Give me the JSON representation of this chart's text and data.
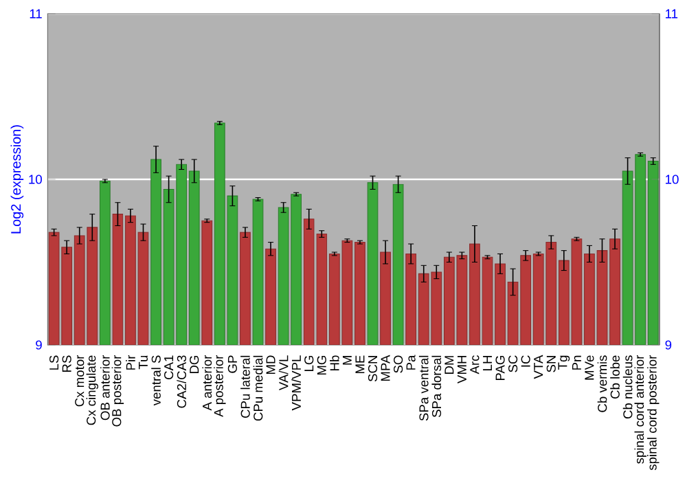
{
  "chart_data": {
    "type": "bar",
    "ylabel": "Log2 (expression)",
    "categories": [
      "LS",
      "RS",
      "Cx motor",
      "Cx cingulate",
      "OB anterior",
      "OB posterior",
      "Pir",
      "Tu",
      "ventral S",
      "CA1",
      "CA2/CA3",
      "DG",
      "A anterior",
      "A posterior",
      "GP",
      "CPu lateral",
      "CPu medial",
      "MD",
      "VA/VL",
      "VPM/VPL",
      "LG",
      "MG",
      "Hb",
      "M",
      "ME",
      "SCN",
      "MPA",
      "SO",
      "Pa",
      "SPa ventral",
      "SPa dorsal",
      "DM",
      "VMH",
      "Arc",
      "LH",
      "PAG",
      "SC",
      "IC",
      "VTA",
      "SN",
      "Tg",
      "Pn",
      "MVe",
      "Cb vermis",
      "Cb lobe",
      "Cb nucleus",
      "spinal cord anterior",
      "spinal cord posterior"
    ],
    "values": [
      9.68,
      9.59,
      9.66,
      9.71,
      9.99,
      9.79,
      9.78,
      9.68,
      10.12,
      9.94,
      10.09,
      10.05,
      9.75,
      10.34,
      9.9,
      9.68,
      9.88,
      9.58,
      9.83,
      9.91,
      9.76,
      9.67,
      9.55,
      9.63,
      9.62,
      9.98,
      9.56,
      9.97,
      9.55,
      9.43,
      9.44,
      9.53,
      9.54,
      9.61,
      9.53,
      9.49,
      9.38,
      9.54,
      9.55,
      9.62,
      9.51,
      9.64,
      9.55,
      9.57,
      9.64,
      10.05,
      10.15,
      10.11
    ],
    "errors": [
      0.02,
      0.04,
      0.05,
      0.08,
      0.01,
      0.07,
      0.04,
      0.05,
      0.08,
      0.08,
      0.03,
      0.07,
      0.01,
      0.01,
      0.06,
      0.03,
      0.01,
      0.04,
      0.03,
      0.01,
      0.06,
      0.02,
      0.01,
      0.01,
      0.01,
      0.04,
      0.07,
      0.05,
      0.06,
      0.05,
      0.04,
      0.03,
      0.02,
      0.11,
      0.01,
      0.06,
      0.08,
      0.03,
      0.01,
      0.04,
      0.06,
      0.01,
      0.05,
      0.07,
      0.06,
      0.08,
      0.01,
      0.02
    ],
    "colors": [
      "#b83a3a",
      "#b83a3a",
      "#b83a3a",
      "#b83a3a",
      "#3aa83a",
      "#b83a3a",
      "#b83a3a",
      "#b83a3a",
      "#3aa83a",
      "#3aa83a",
      "#3aa83a",
      "#3aa83a",
      "#b83a3a",
      "#3aa83a",
      "#3aa83a",
      "#b83a3a",
      "#3aa83a",
      "#b83a3a",
      "#3aa83a",
      "#3aa83a",
      "#b83a3a",
      "#b83a3a",
      "#b83a3a",
      "#b83a3a",
      "#b83a3a",
      "#3aa83a",
      "#b83a3a",
      "#3aa83a",
      "#b83a3a",
      "#b83a3a",
      "#b83a3a",
      "#b83a3a",
      "#b83a3a",
      "#b83a3a",
      "#b83a3a",
      "#b83a3a",
      "#b83a3a",
      "#b83a3a",
      "#b83a3a",
      "#b83a3a",
      "#b83a3a",
      "#b83a3a",
      "#b83a3a",
      "#b83a3a",
      "#b83a3a",
      "#3aa83a",
      "#3aa83a",
      "#3aa83a"
    ],
    "ylim": [
      9,
      11
    ],
    "yticks": [
      9,
      10,
      11
    ],
    "y2lim": [
      9,
      11
    ],
    "y2ticks": [
      9,
      10,
      11
    ],
    "grid": "y"
  }
}
